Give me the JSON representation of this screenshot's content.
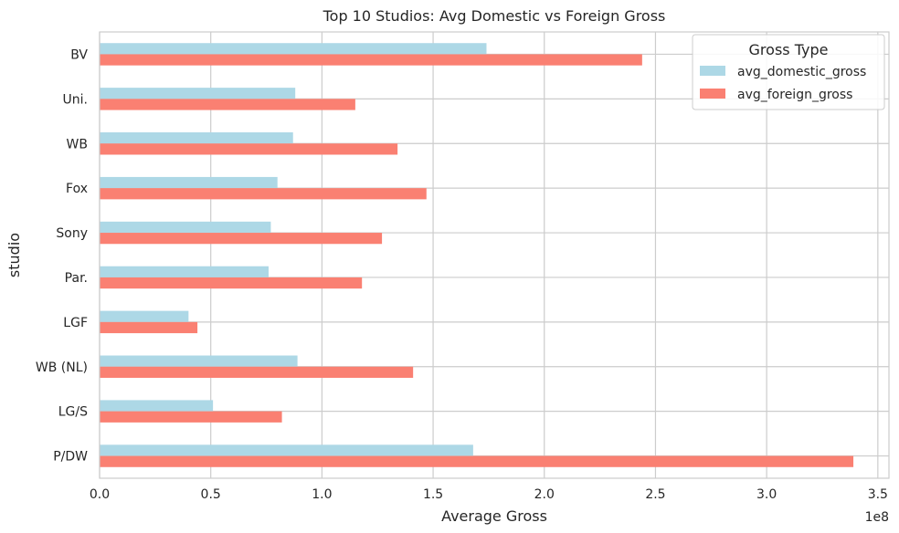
{
  "chart_data": {
    "type": "bar",
    "orientation": "horizontal",
    "title": "Top 10 Studios: Avg Domestic vs Foreign Gross",
    "xlabel": "Average Gross",
    "ylabel": "studio",
    "x_offset_label": "1e8",
    "xlim": [
      0,
      3.55
    ],
    "xticks": [
      "0.0",
      "0.5",
      "1.0",
      "1.5",
      "2.0",
      "2.5",
      "3.0",
      "3.5"
    ],
    "grid": true,
    "legend_title": "Gross Type",
    "legend_position": "top-right",
    "categories": [
      "BV",
      "Uni.",
      "WB",
      "Fox",
      "Sony",
      "Par.",
      "LGF",
      "WB (NL)",
      "LG/S",
      "P/DW"
    ],
    "series": [
      {
        "name": "avg_domestic_gross",
        "color": "#add8e6",
        "values": [
          1.74,
          0.88,
          0.87,
          0.8,
          0.77,
          0.76,
          0.4,
          0.89,
          0.51,
          1.68
        ]
      },
      {
        "name": "avg_foreign_gross",
        "color": "#fa8072",
        "values": [
          2.44,
          1.15,
          1.34,
          1.47,
          1.27,
          1.18,
          0.44,
          1.41,
          0.82,
          3.39
        ]
      }
    ],
    "colors": {
      "grid": "#cccccc",
      "spine": "#cccccc",
      "text": "#262626"
    }
  }
}
